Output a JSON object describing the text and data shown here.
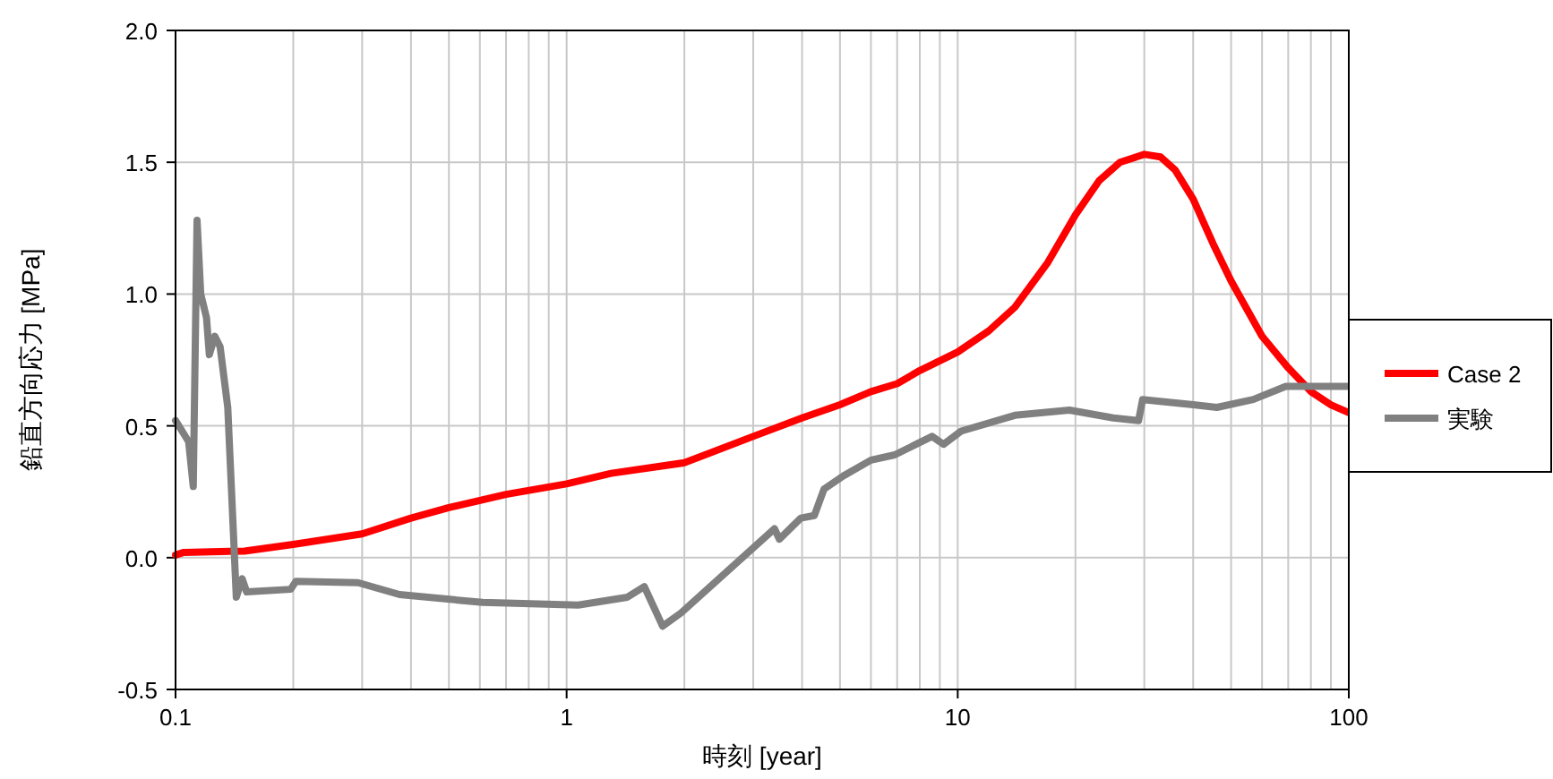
{
  "chart_data": {
    "type": "line",
    "xlabel": "時刻 [year]",
    "ylabel": "鉛直方向応力 [MPa]",
    "log": "x",
    "grid": true,
    "legend": "right",
    "line_style": "solid",
    "marker": "none",
    "xlim": [
      0.1,
      100
    ],
    "xticks": [
      0.1,
      1,
      10,
      100
    ],
    "ylim": [
      -0.5,
      2.0
    ],
    "yticks": [
      {
        "value": -0.5,
        "label": "-0.5"
      },
      {
        "value": 0,
        "label": "0.0"
      },
      {
        "value": 0.5,
        "label": "0.5"
      },
      {
        "value": 1,
        "label": "1.0"
      },
      {
        "value": 1.5,
        "label": "1.5"
      },
      {
        "value": 2,
        "label": "2.0"
      }
    ],
    "series": [
      {
        "name": "Case 2",
        "color": "#ff0000",
        "x": [
          0.1,
          0.105,
          0.15,
          0.2,
          0.3,
          0.4,
          0.5,
          0.7,
          1,
          1.3,
          2,
          3,
          4,
          5,
          6,
          7,
          8,
          10,
          12,
          14,
          17,
          20,
          23,
          26,
          30,
          33,
          36,
          40,
          45,
          50,
          60,
          70,
          80,
          90,
          100
        ],
        "values": [
          0.01,
          0.02,
          0.025,
          0.05,
          0.09,
          0.15,
          0.19,
          0.24,
          0.28,
          0.32,
          0.36,
          0.46,
          0.53,
          0.58,
          0.63,
          0.66,
          0.71,
          0.78,
          0.86,
          0.95,
          1.12,
          1.3,
          1.43,
          1.5,
          1.53,
          1.52,
          1.47,
          1.36,
          1.19,
          1.05,
          0.84,
          0.72,
          0.63,
          0.58,
          0.55
        ]
      },
      {
        "name": "実験",
        "color": "#808080",
        "x": [
          0.1,
          0.108,
          0.111,
          0.1135,
          0.116,
          0.12,
          0.122,
          0.126,
          0.13,
          0.136,
          0.143,
          0.148,
          0.152,
          0.197,
          0.203,
          0.293,
          0.374,
          0.61,
          1.07,
          1.43,
          1.58,
          1.76,
          1.96,
          3.4,
          3.5,
          3.97,
          4.3,
          4.55,
          5.1,
          6.0,
          6.9,
          8.6,
          9.2,
          10.2,
          14,
          19.3,
          25,
          29,
          29.7,
          40,
          46,
          57,
          69,
          100
        ],
        "values": [
          0.52,
          0.44,
          0.27,
          1.28,
          1.0,
          0.91,
          0.77,
          0.84,
          0.8,
          0.57,
          -0.15,
          -0.08,
          -0.13,
          -0.12,
          -0.09,
          -0.095,
          -0.14,
          -0.17,
          -0.18,
          -0.15,
          -0.11,
          -0.26,
          -0.21,
          0.11,
          0.07,
          0.15,
          0.16,
          0.26,
          0.31,
          0.37,
          0.39,
          0.46,
          0.43,
          0.48,
          0.54,
          0.56,
          0.53,
          0.52,
          0.6,
          0.58,
          0.57,
          0.6,
          0.65,
          0.65
        ]
      }
    ]
  }
}
